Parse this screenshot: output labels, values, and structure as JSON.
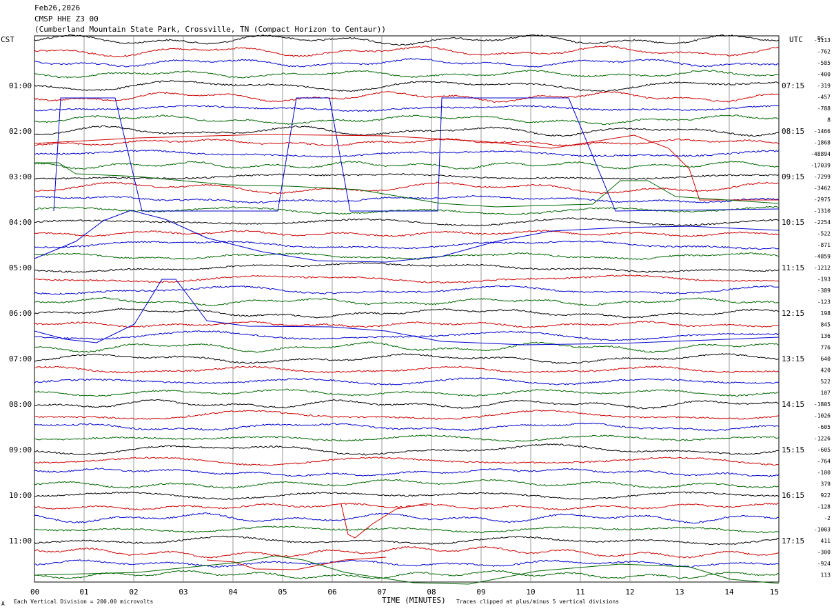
{
  "header": {
    "date": "Feb26,2026",
    "station": "CMSP HHE Z3 00",
    "location": "(Cumberland Mountain State Park, Crossville, TN (Compact Horizon to Centaur))"
  },
  "left_axis_title": "CST",
  "right_axis_title": "UTC",
  "dc_header": "DC",
  "footer": {
    "scale_note": "Each Vertical Division =  200.00 microvolts",
    "xlabel": "TIME (MINUTES)",
    "clip_note": "Traces clipped at plus/minus 5 vertical divisions",
    "corner_mark": "A"
  },
  "colors": {
    "trace_cycle": [
      "#000000",
      "#cc0000",
      "#0000cc",
      "#006600"
    ],
    "grid": "#808080",
    "background": "#ffffff"
  },
  "chart_data": {
    "type": "line",
    "title": "CMSP HHE Z3 00",
    "xlabel": "TIME (MINUTES)",
    "x_ticks": [
      "00",
      "01",
      "02",
      "03",
      "04",
      "05",
      "06",
      "07",
      "08",
      "09",
      "10",
      "11",
      "12",
      "13",
      "14",
      "15"
    ],
    "xlim": [
      0,
      15
    ],
    "traces_per_hour": 4,
    "trace_minutes": 15,
    "row_count": 48,
    "grid": "vertical lines each minute",
    "left_hour_labels": [
      "01:00",
      "02:00",
      "03:00",
      "04:00",
      "05:00",
      "06:00",
      "07:00",
      "08:00",
      "09:00",
      "10:00",
      "11:00"
    ],
    "right_hour_labels": [
      "07:15",
      "08:15",
      "09:15",
      "10:15",
      "11:15",
      "12:15",
      "13:15",
      "14:15",
      "15:15",
      "16:15",
      "17:15"
    ],
    "dc_offsets": [
      "-1113",
      "-762",
      "-585",
      "-400",
      "-319",
      "-457",
      "-788",
      "8",
      "-1466",
      "-1868",
      "-48894",
      "-17039",
      "-7299",
      "-3462",
      "-2975",
      "-1310",
      "-2254",
      "-522",
      "-871",
      "-4859",
      "-1212",
      "-193",
      "-389",
      "-123",
      "198",
      "845",
      "136",
      "776",
      "640",
      "420",
      "522",
      "107",
      "-1805",
      "-1026",
      "-605",
      "-1226",
      "-605",
      "-764",
      "-100",
      "379",
      "922",
      "-128",
      "-2",
      "-1003",
      "411",
      "-300",
      "-924",
      "113"
    ],
    "scale": "200.00 microvolts per vertical division",
    "clip_level": "plus/minus 5 vertical divisions"
  }
}
